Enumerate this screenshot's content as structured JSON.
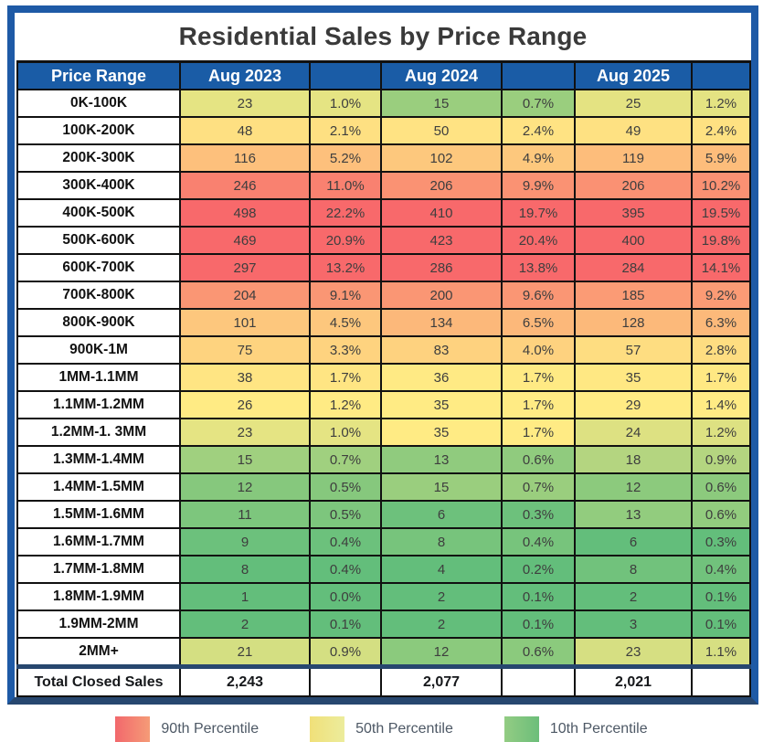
{
  "title": "Residential Sales by Price Range",
  "header": {
    "price_range": "Price Range"
  },
  "chart_data": {
    "type": "heatmap",
    "title": "Residential Sales by Price Range",
    "row_label_header": "Price Range",
    "categories": [
      "0K-100K",
      "100K-200K",
      "200K-300K",
      "300K-400K",
      "400K-500K",
      "500K-600K",
      "600K-700K",
      "700K-800K",
      "800K-900K",
      "900K-1M",
      "1MM-1.1MM",
      "1.1MM-1.2MM",
      "1.2MM-1. 3MM",
      "1.3MM-1.4MM",
      "1.4MM-1.5MM",
      "1.5MM-1.6MM",
      "1.6MM-1.7MM",
      "1.7MM-1.8MM",
      "1.8MM-1.9MM",
      "1.9MM-2MM",
      "2MM+"
    ],
    "series": [
      {
        "name": "Aug 2023",
        "counts": [
          23,
          48,
          116,
          246,
          498,
          469,
          297,
          204,
          101,
          75,
          38,
          26,
          23,
          15,
          12,
          11,
          9,
          8,
          1,
          2,
          21
        ],
        "percent_labels": [
          "1.0%",
          "2.1%",
          "5.2%",
          "11.0%",
          "22.2%",
          "20.9%",
          "13.2%",
          "9.1%",
          "4.5%",
          "3.3%",
          "1.7%",
          "1.2%",
          "1.0%",
          "0.7%",
          "0.5%",
          "0.5%",
          "0.4%",
          "0.4%",
          "0.0%",
          "0.1%",
          "0.9%"
        ],
        "total": 2243,
        "total_label": "2,243"
      },
      {
        "name": "Aug 2024",
        "counts": [
          15,
          50,
          102,
          206,
          410,
          423,
          286,
          200,
          134,
          83,
          36,
          35,
          35,
          13,
          15,
          6,
          8,
          4,
          2,
          2,
          12
        ],
        "percent_labels": [
          "0.7%",
          "2.4%",
          "4.9%",
          "9.9%",
          "19.7%",
          "20.4%",
          "13.8%",
          "9.6%",
          "6.5%",
          "4.0%",
          "1.7%",
          "1.7%",
          "1.7%",
          "0.6%",
          "0.7%",
          "0.3%",
          "0.4%",
          "0.2%",
          "0.1%",
          "0.1%",
          "0.6%"
        ],
        "total": 2077,
        "total_label": "2,077"
      },
      {
        "name": "Aug 2025",
        "counts": [
          25,
          49,
          119,
          206,
          395,
          400,
          284,
          185,
          128,
          57,
          35,
          29,
          24,
          18,
          12,
          13,
          6,
          8,
          2,
          3,
          23
        ],
        "percent_labels": [
          "1.2%",
          "2.4%",
          "5.9%",
          "10.2%",
          "19.5%",
          "19.8%",
          "14.1%",
          "9.2%",
          "6.3%",
          "2.8%",
          "1.7%",
          "1.4%",
          "1.2%",
          "0.9%",
          "0.6%",
          "0.6%",
          "0.3%",
          "0.4%",
          "0.1%",
          "0.1%",
          "1.1%"
        ],
        "total": 2021,
        "total_label": "2,021"
      }
    ],
    "total_row_label": "Total Closed Sales",
    "legend": [
      {
        "label": "90th Percentile",
        "color": "#F2686C",
        "color2": "#F59B77"
      },
      {
        "label": "50th Percentile",
        "color": "#F0E079",
        "color2": "#ECEC9C"
      },
      {
        "label": "10th Percentile",
        "color": "#93CC83",
        "color2": "#6CBE7A"
      }
    ],
    "color_scale": {
      "min_color": "#63BE7B",
      "mid_color": "#FFEB84",
      "max_color": "#F8696B",
      "anchors_percentiles": [
        10,
        50,
        90
      ],
      "applied_per": "year column, on counts"
    },
    "grid": "black cell borders",
    "legend_position": "bottom"
  }
}
